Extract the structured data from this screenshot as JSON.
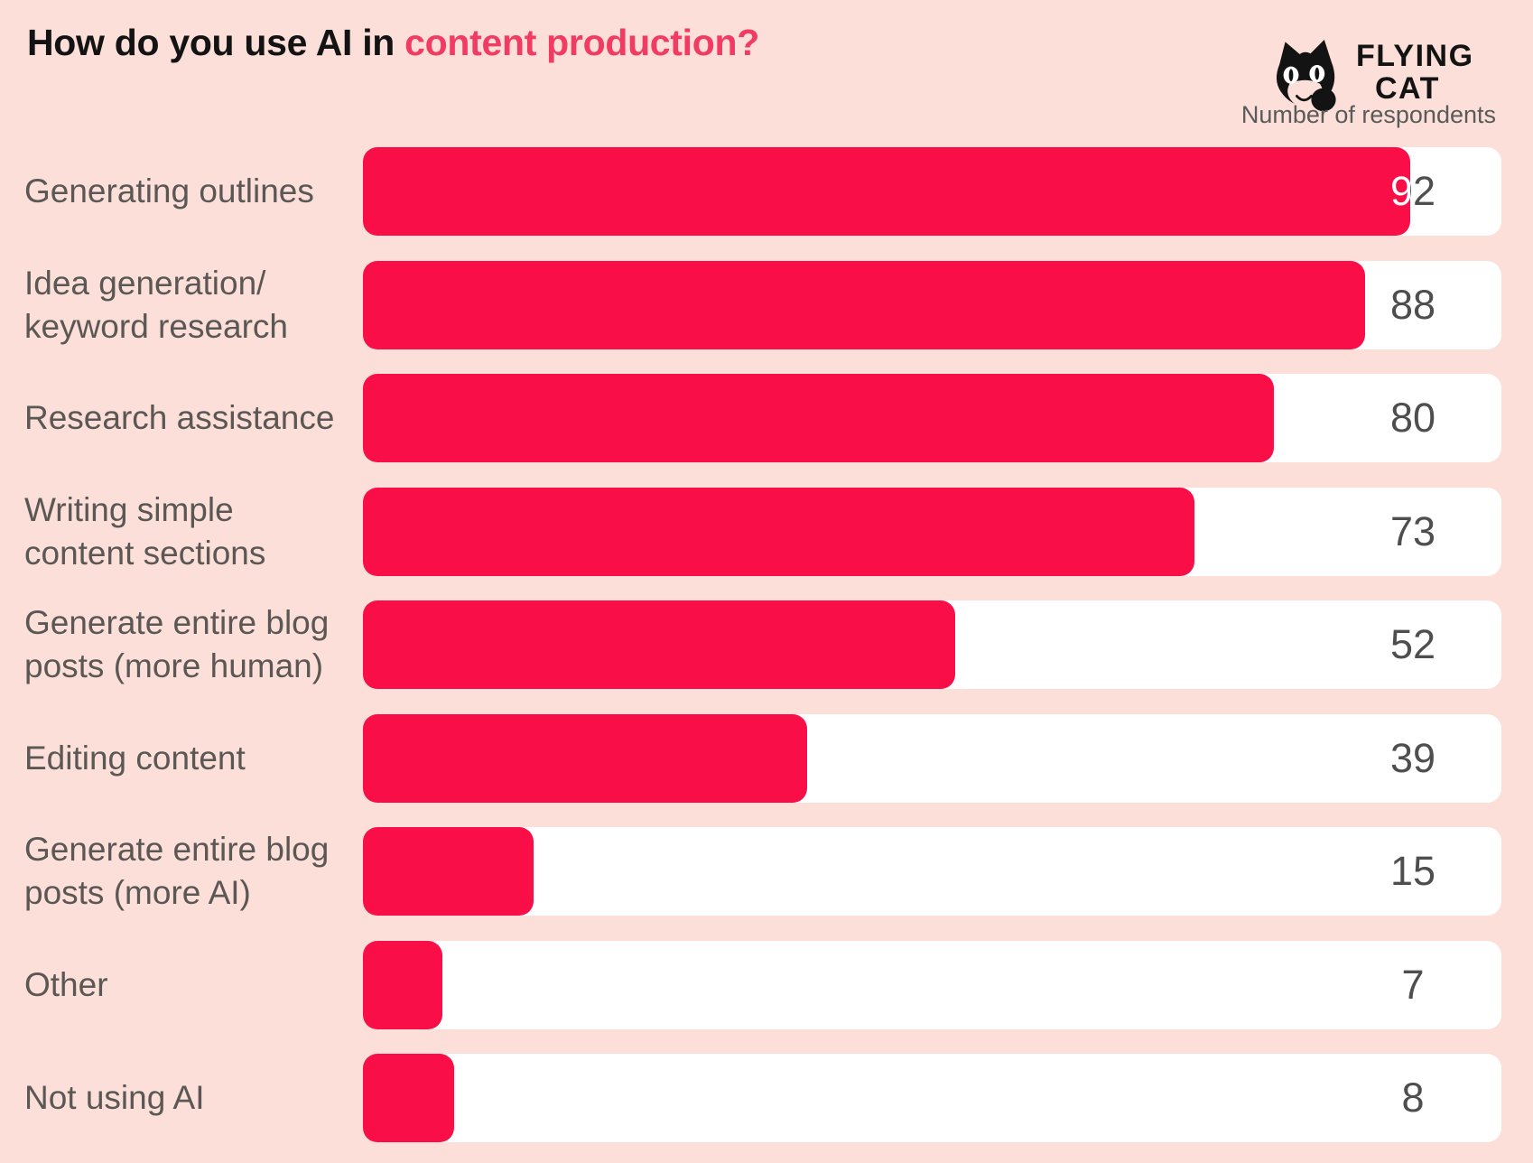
{
  "title": {
    "prefix": "How do you use AI in ",
    "accent": "content production?"
  },
  "logo": {
    "line1": "FLYING",
    "line2": "CAT",
    "icon": "flying-cat-icon"
  },
  "axis_note": "Number of respondents",
  "colors": {
    "background": "#FBDFD8",
    "bar": "#FA0E48",
    "track": "#FFFFFF",
    "title_text": "#131313",
    "title_accent": "#F23B62",
    "label_text": "#5B5755",
    "value_text": "#4E4E4E"
  },
  "chart_data": {
    "type": "bar",
    "orientation": "horizontal",
    "title": "How do you use AI in content production?",
    "value_axis_label": "Number of respondents",
    "xlim": [
      0,
      100
    ],
    "grid": false,
    "legend": false,
    "value_labels": "inside-track-right",
    "categories": [
      "Generating outlines",
      "Idea generation/\nkeyword research",
      "Research assistance",
      "Writing simple\ncontent sections",
      "Generate entire blog\nposts (more human)",
      "Editing content",
      "Generate entire blog\nposts (more AI)",
      "Other",
      "Not using AI"
    ],
    "values": [
      92,
      88,
      80,
      73,
      52,
      39,
      15,
      7,
      8
    ]
  }
}
